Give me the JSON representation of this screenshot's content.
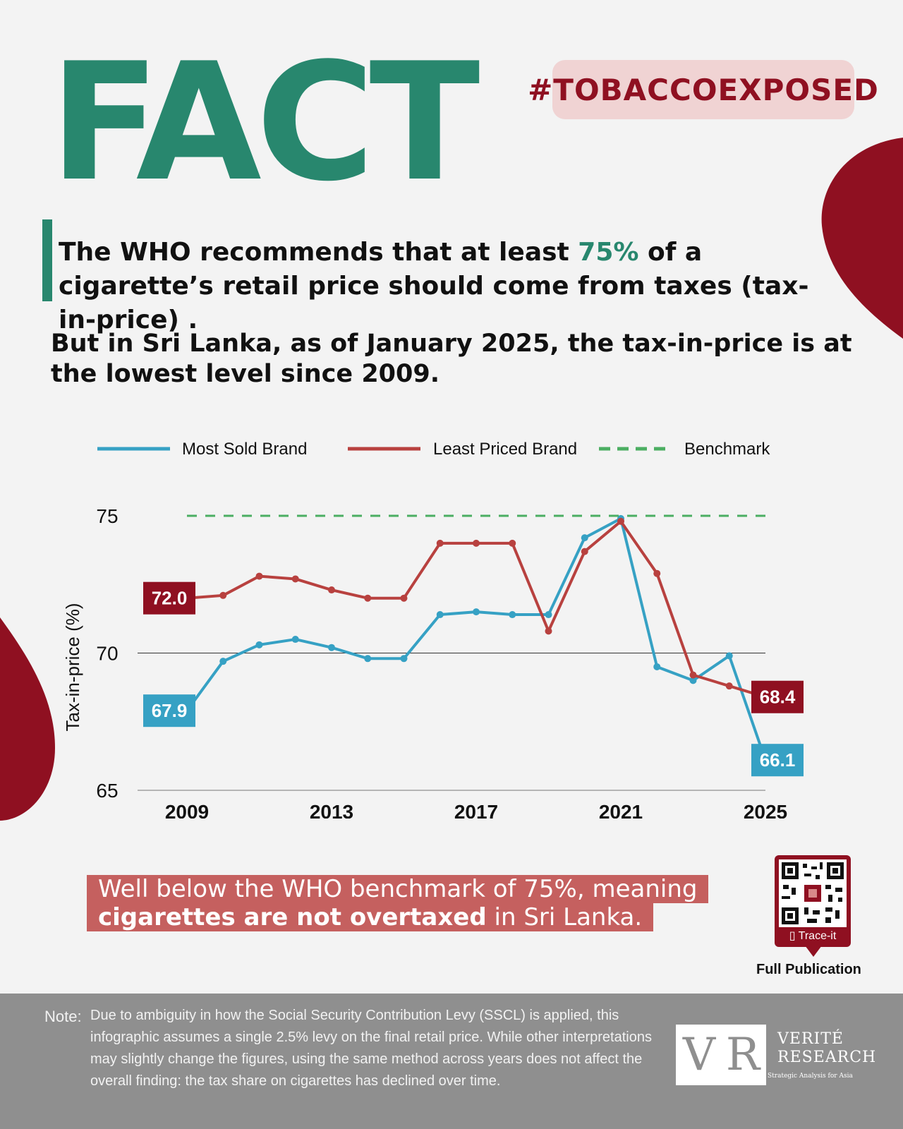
{
  "header": {
    "title": "FACT",
    "hashtag": "#TOBACCOEXPOSED"
  },
  "statement": {
    "before": "The WHO recommends that at least ",
    "highlight": "75%",
    "after": " of a cigarette’s retail price should come from taxes (tax-in-price) ."
  },
  "subheadline": "But in Sri Lanka, as of January 2025, the tax-in-price is at the lowest level since 2009.",
  "callout": {
    "line1": "Well below the WHO benchmark of 75%, meaning",
    "bold": "cigarettes are not overtaxed",
    "rest": " in Sri Lanka."
  },
  "qr": {
    "label": "Trace-it",
    "caption": "Full Publication"
  },
  "note": {
    "label": "Note:",
    "text": "Due to ambiguity in how the Social Security Contribution Levy (SSCL) is applied, this infographic assumes a single 2.5% levy on the final retail price. While other interpretations may slightly change the figures, using the same method across years does not affect the overall finding: the tax share on cigarettes has declined over time."
  },
  "logo": {
    "line1": "VERITÉ",
    "line2": "RESEARCH",
    "tagline": "Strategic Analysis for Asia"
  },
  "colors": {
    "green": "#28876e",
    "crimson": "#8f1021",
    "blue": "#36a1c4",
    "red": "#b8413f",
    "benchmark": "#4bae62"
  },
  "chart_data": {
    "type": "line",
    "title": "",
    "xlabel": "",
    "ylabel": "Tax-in-price (%)",
    "x": [
      2009,
      2010,
      2011,
      2012,
      2013,
      2014,
      2015,
      2016,
      2017,
      2018,
      2019,
      2020,
      2021,
      2022,
      2023,
      2024,
      2025
    ],
    "x_ticks": [
      2009,
      2013,
      2017,
      2021,
      2025
    ],
    "y_ticks": [
      65,
      70,
      75
    ],
    "ylim": [
      65,
      75
    ],
    "grid": false,
    "legend": "top",
    "series": [
      {
        "name": "Most Sold Brand",
        "color": "#36a1c4",
        "values": [
          67.9,
          69.7,
          70.3,
          70.5,
          70.2,
          69.8,
          69.8,
          71.4,
          71.5,
          71.4,
          71.4,
          74.2,
          74.9,
          69.5,
          69.0,
          69.9,
          66.1
        ],
        "labels": [
          {
            "index": 0,
            "text": "67.9"
          },
          {
            "index": 16,
            "text": "66.1"
          }
        ]
      },
      {
        "name": "Least Priced Brand",
        "color": "#b8413f",
        "values": [
          72.0,
          72.1,
          72.8,
          72.7,
          72.3,
          72.0,
          72.0,
          74.0,
          74.0,
          74.0,
          70.8,
          73.7,
          74.8,
          72.9,
          69.2,
          68.8,
          68.4
        ],
        "labels": [
          {
            "index": 0,
            "text": "72.0"
          },
          {
            "index": 16,
            "text": "68.4"
          }
        ]
      },
      {
        "name": "Benchmark",
        "color": "#4bae62",
        "dashed": true,
        "values": [
          75,
          75,
          75,
          75,
          75,
          75,
          75,
          75,
          75,
          75,
          75,
          75,
          75,
          75,
          75,
          75,
          75
        ]
      }
    ]
  }
}
